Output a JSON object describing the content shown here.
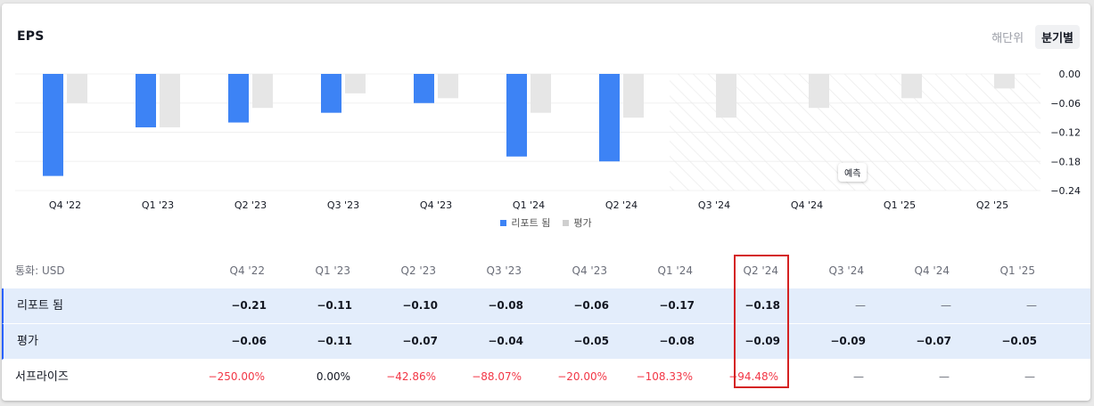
{
  "header": {
    "title": "EPS",
    "toggle": [
      "해단위",
      "분기별"
    ],
    "active_toggle": 1
  },
  "chart_data": {
    "type": "bar",
    "categories": [
      "Q4 '22",
      "Q1 '23",
      "Q2 '23",
      "Q3 '23",
      "Q4 '23",
      "Q1 '24",
      "Q2 '24",
      "Q3 '24",
      "Q4 '24",
      "Q1 '25",
      "Q2 '25"
    ],
    "series": [
      {
        "name": "리포트 됨",
        "color": "#3d83f5",
        "values": [
          -0.21,
          -0.11,
          -0.1,
          -0.08,
          -0.06,
          -0.17,
          -0.18,
          null,
          null,
          null,
          null
        ]
      },
      {
        "name": "평가",
        "color": "#e6e6e6",
        "values": [
          -0.06,
          -0.11,
          -0.07,
          -0.04,
          -0.05,
          -0.08,
          -0.09,
          -0.09,
          -0.07,
          -0.05,
          -0.03
        ]
      }
    ],
    "yticks": [
      "0.00",
      "−0.06",
      "−0.12",
      "−0.18",
      "−0.24"
    ],
    "ylim": [
      -0.24,
      0
    ],
    "forecast_label": "예측",
    "forecast_start_index": 7
  },
  "table": {
    "currency_label": "통화: USD",
    "columns": [
      "Q4 '22",
      "Q1 '23",
      "Q2 '23",
      "Q3 '23",
      "Q4 '23",
      "Q1 '24",
      "Q2 '24",
      "Q3 '24",
      "Q4 '24",
      "Q1 '25"
    ],
    "rows": [
      {
        "label": "리포트 됨",
        "values": [
          "−0.21",
          "−0.11",
          "−0.10",
          "−0.08",
          "−0.06",
          "−0.17",
          "−0.18",
          "—",
          "—",
          "—"
        ]
      },
      {
        "label": "평가",
        "values": [
          "−0.06",
          "−0.11",
          "−0.07",
          "−0.04",
          "−0.05",
          "−0.08",
          "−0.09",
          "−0.09",
          "−0.07",
          "−0.05"
        ]
      },
      {
        "label": "서프라이즈",
        "values": [
          "−250.00%",
          "0.00%",
          "−42.86%",
          "−88.07%",
          "−20.00%",
          "−108.33%",
          "−94.48%",
          "—",
          "—",
          "—"
        ]
      }
    ]
  },
  "colors": {
    "accent": "#2962ff",
    "negative": "#f23645",
    "highlight_box": "#d42222"
  }
}
